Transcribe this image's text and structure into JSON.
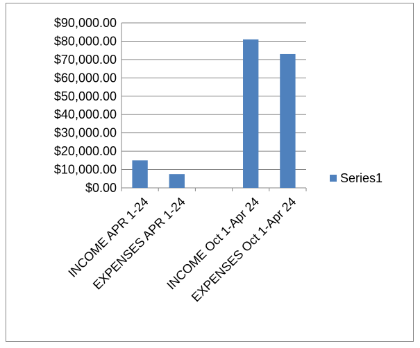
{
  "chart_data": {
    "type": "bar",
    "categories": [
      "INCOME APR 1-24",
      "EXPENSES APR 1-24",
      "",
      "INCOME Oct 1-Apr 24",
      "EXPENSES Oct 1-Apr 24"
    ],
    "series": [
      {
        "name": "Series1",
        "values": [
          15000,
          7500,
          null,
          81000,
          73000
        ],
        "color": "#4f81bd"
      }
    ],
    "yticks": [
      "$0.00",
      "$10,000.00",
      "$20,000.00",
      "$30,000.00",
      "$40,000.00",
      "$50,000.00",
      "$60,000.00",
      "$70,000.00",
      "$80,000.00",
      "$90,000.00"
    ],
    "ylim": [
      0,
      90000
    ],
    "grid": true,
    "legend": "right"
  }
}
